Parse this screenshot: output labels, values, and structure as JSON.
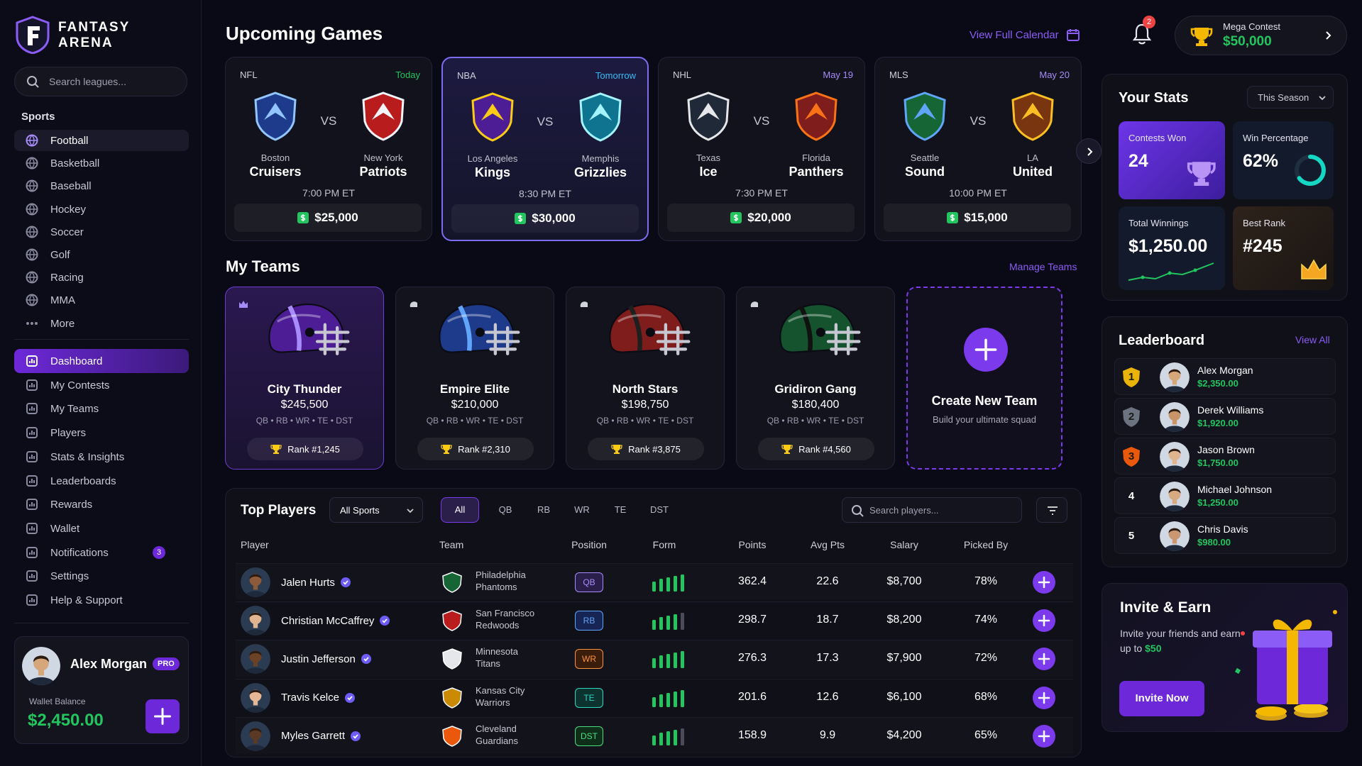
{
  "brand": [
    "FANTASY",
    "ARENA"
  ],
  "sidebar": {
    "search_placeholder": "Search leagues...",
    "sports_heading": "Sports",
    "sports": [
      "Football",
      "Basketball",
      "Baseball",
      "Hockey",
      "Soccer",
      "Golf",
      "Racing",
      "MMA",
      "More"
    ],
    "nav": [
      {
        "label": "Dashboard"
      },
      {
        "label": "My Contests"
      },
      {
        "label": "My Teams"
      },
      {
        "label": "Players"
      },
      {
        "label": "Stats & Insights"
      },
      {
        "label": "Leaderboards"
      },
      {
        "label": "Rewards"
      },
      {
        "label": "Wallet"
      },
      {
        "label": "Notifications",
        "badge": 3
      },
      {
        "label": "Settings"
      },
      {
        "label": "Help & Support"
      }
    ]
  },
  "user": {
    "name": "Alex Morgan",
    "badge": "PRO",
    "wallet_label": "Wallet Balance",
    "wallet_balance": "$2,450.00"
  },
  "header": {
    "notification_count": 2,
    "contest": {
      "label": "Mega Contest",
      "prize": "$50,000"
    }
  },
  "upcoming": {
    "title": "Upcoming Games",
    "link": "View Full Calendar",
    "vs": "VS",
    "games": [
      {
        "league": "NFL",
        "when": "Today",
        "home": {
          "city": "Boston",
          "name": "Cruisers"
        },
        "away": {
          "city": "New York",
          "name": "Patriots"
        },
        "time": "7:00 PM ET",
        "prize": "$25,000"
      },
      {
        "league": "NBA",
        "when": "Tomorrow",
        "home": {
          "city": "Los Angeles",
          "name": "Kings"
        },
        "away": {
          "city": "Memphis",
          "name": "Grizzlies"
        },
        "time": "8:30 PM ET",
        "prize": "$30,000"
      },
      {
        "league": "NHL",
        "when": "May 19",
        "home": {
          "city": "Texas",
          "name": "Ice"
        },
        "away": {
          "city": "Florida",
          "name": "Panthers"
        },
        "time": "7:30 PM ET",
        "prize": "$20,000"
      },
      {
        "league": "MLS",
        "when": "May 20",
        "home": {
          "city": "Seattle",
          "name": "Sound"
        },
        "away": {
          "city": "LA",
          "name": "United"
        },
        "time": "10:00 PM ET",
        "prize": "$15,000"
      }
    ]
  },
  "my_teams": {
    "title": "My Teams",
    "link": "Manage Teams",
    "teams": [
      {
        "name": "City Thunder",
        "value": "$245,500",
        "positions": "QB • RB • WR • TE • DST",
        "rank": "Rank #1,245"
      },
      {
        "name": "Empire Elite",
        "value": "$210,000",
        "positions": "QB • RB • WR • TE • DST",
        "rank": "Rank #2,310"
      },
      {
        "name": "North Stars",
        "value": "$198,750",
        "positions": "QB • RB • WR • TE • DST",
        "rank": "Rank #3,875"
      },
      {
        "name": "Gridiron Gang",
        "value": "$180,400",
        "positions": "QB • RB • WR • TE • DST",
        "rank": "Rank #4,560"
      }
    ],
    "create": {
      "title": "Create New Team",
      "subtitle": "Build your ultimate squad"
    }
  },
  "top_players": {
    "title": "Top Players",
    "sport_filter": "All Sports",
    "tabs": [
      "All",
      "QB",
      "RB",
      "WR",
      "TE",
      "DST"
    ],
    "search_placeholder": "Search players...",
    "columns": [
      "Player",
      "Team",
      "Position",
      "Form",
      "Points",
      "Avg Pts",
      "Salary",
      "Picked By"
    ],
    "rows": [
      {
        "player": "Jalen Hurts",
        "team_city": "Philadelphia",
        "team_name": "Phantoms",
        "position": "QB",
        "form": 5,
        "points": 362.4,
        "avg_pts": 22.6,
        "salary": "$8,700",
        "picked_by": "78%"
      },
      {
        "player": "Christian McCaffrey",
        "team_city": "San Francisco",
        "team_name": "Redwoods",
        "position": "RB",
        "form": 4,
        "points": 298.7,
        "avg_pts": 18.7,
        "salary": "$8,200",
        "picked_by": "74%"
      },
      {
        "player": "Justin Jefferson",
        "team_city": "Minnesota",
        "team_name": "Titans",
        "position": "WR",
        "form": 5,
        "points": 276.3,
        "avg_pts": 17.3,
        "salary": "$7,900",
        "picked_by": "72%"
      },
      {
        "player": "Travis Kelce",
        "team_city": "Kansas City",
        "team_name": "Warriors",
        "position": "TE",
        "form": 5,
        "points": 201.6,
        "avg_pts": 12.6,
        "salary": "$6,100",
        "picked_by": "68%"
      },
      {
        "player": "Myles Garrett",
        "team_city": "Cleveland",
        "team_name": "Guardians",
        "position": "DST",
        "form": 4,
        "points": 158.9,
        "avg_pts": 9.9,
        "salary": "$4,200",
        "picked_by": "65%"
      }
    ]
  },
  "stats": {
    "title": "Your Stats",
    "period": "This Season",
    "tiles": [
      {
        "label": "Contests Won",
        "value": 24
      },
      {
        "label": "Win Percentage",
        "value": "62%"
      },
      {
        "label": "Total Winnings",
        "value": "$1,250.00"
      },
      {
        "label": "Best Rank",
        "value": "#245"
      }
    ]
  },
  "leaderboard": {
    "title": "Leaderboard",
    "link": "View All",
    "rows": [
      {
        "rank": 1,
        "name": "Alex Morgan",
        "amount": "$2,350.00"
      },
      {
        "rank": 2,
        "name": "Derek Williams",
        "amount": "$1,920.00"
      },
      {
        "rank": 3,
        "name": "Jason Brown",
        "amount": "$1,750.00"
      },
      {
        "rank": 4,
        "name": "Michael Johnson",
        "amount": "$1,250.00"
      },
      {
        "rank": 5,
        "name": "Chris Davis",
        "amount": "$980.00"
      }
    ]
  },
  "invite": {
    "title": "Invite & Earn",
    "text": "Invite your friends and earn up to",
    "reward": "$50",
    "button": "Invite Now"
  }
}
